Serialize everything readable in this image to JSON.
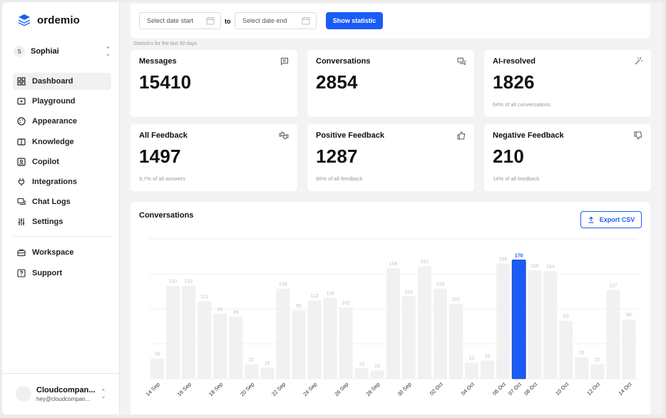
{
  "app": {
    "name": "ordemio",
    "project": "Sophiai",
    "project_initial": "S"
  },
  "sidebar": {
    "items": [
      {
        "label": "Dashboard",
        "icon": "dashboard-icon",
        "active": true
      },
      {
        "label": "Playground",
        "icon": "play-icon",
        "active": false
      },
      {
        "label": "Appearance",
        "icon": "palette-icon",
        "active": false
      },
      {
        "label": "Knowledge",
        "icon": "book-icon",
        "active": false
      },
      {
        "label": "Copilot",
        "icon": "user-square-icon",
        "active": false
      },
      {
        "label": "Integrations",
        "icon": "plug-icon",
        "active": false
      },
      {
        "label": "Chat Logs",
        "icon": "chat-logs-icon",
        "active": false
      },
      {
        "label": "Settings",
        "icon": "sliders-icon",
        "active": false
      }
    ],
    "secondary": [
      {
        "label": "Workspace",
        "icon": "briefcase-icon"
      },
      {
        "label": "Support",
        "icon": "help-icon"
      }
    ],
    "user": {
      "name": "Cloudcompan...",
      "email": "hey@cloudcompan..."
    }
  },
  "filters": {
    "start_placeholder": "Select date start",
    "to_label": "to",
    "end_placeholder": "Select date end",
    "show_label": "Show statistic",
    "hint": "Statistics for the last 30 days"
  },
  "stats": [
    {
      "title": "Messages",
      "value": "15410",
      "sub": "",
      "icon": "message-icon"
    },
    {
      "title": "Conversations",
      "value": "2854",
      "sub": "",
      "icon": "conversations-icon"
    },
    {
      "title": "AI-resolved",
      "value": "1826",
      "sub": "64% of all conversations",
      "icon": "magic-wand-icon"
    },
    {
      "title": "All Feedback",
      "value": "1497",
      "sub": "9,7% of all answers",
      "icon": "thumbs-both-icon"
    },
    {
      "title": "Positive Feedback",
      "value": "1287",
      "sub": "86% of all feedback",
      "icon": "thumbs-up-icon"
    },
    {
      "title": "Negative Feedback",
      "value": "210",
      "sub": "14% of all feedback",
      "icon": "thumbs-down-icon"
    }
  ],
  "chart_section": {
    "title": "Conversations",
    "export_label": "Export CSV"
  },
  "colors": {
    "accent": "#1a5cf5",
    "bar": "#f1f1f2",
    "bar_label": "#d6d6d9"
  },
  "chart_data": {
    "type": "bar",
    "highlight_index": 23,
    "categories": [
      "14 Sep",
      "15 Sep",
      "16 Sep",
      "17 Sep",
      "18 Sep",
      "19 Sep",
      "20 Sep",
      "21 Sep",
      "22 Sep",
      "23 Sep",
      "24 Sep",
      "25 Sep",
      "26 Sep",
      "27 Sep",
      "28 Sep",
      "29 Sep",
      "30 Sep",
      "01 Oct",
      "02 Oct",
      "03 Oct",
      "04 Oct",
      "05 Oct",
      "06 Oct",
      "07 Oct",
      "08 Oct",
      "09 Oct",
      "10 Oct",
      "11 Oct",
      "12 Oct",
      "13 Oct",
      "14 Oct"
    ],
    "tick_labels": [
      "14 Sep",
      "",
      "16 Sep",
      "",
      "18 Sep",
      "",
      "20 Sep",
      "",
      "22 Sep",
      "",
      "24 Sep",
      "",
      "26 Sep",
      "",
      "28 Sep",
      "",
      "30 Sep",
      "",
      "02 Oct",
      "",
      "04 Oct",
      "",
      "06 Oct",
      "07 Oct",
      "08 Oct",
      "",
      "10 Oct",
      "",
      "12 Oct",
      "",
      "14 Oct"
    ],
    "values": [
      29,
      133,
      133,
      111,
      93,
      89,
      21,
      16,
      129,
      98,
      112,
      116,
      102,
      15,
      12,
      158,
      118,
      161,
      129,
      107,
      23,
      26,
      165,
      170,
      155,
      154,
      83,
      31,
      21,
      127,
      85
    ],
    "ylim": [
      0,
      200
    ],
    "grid": true
  }
}
